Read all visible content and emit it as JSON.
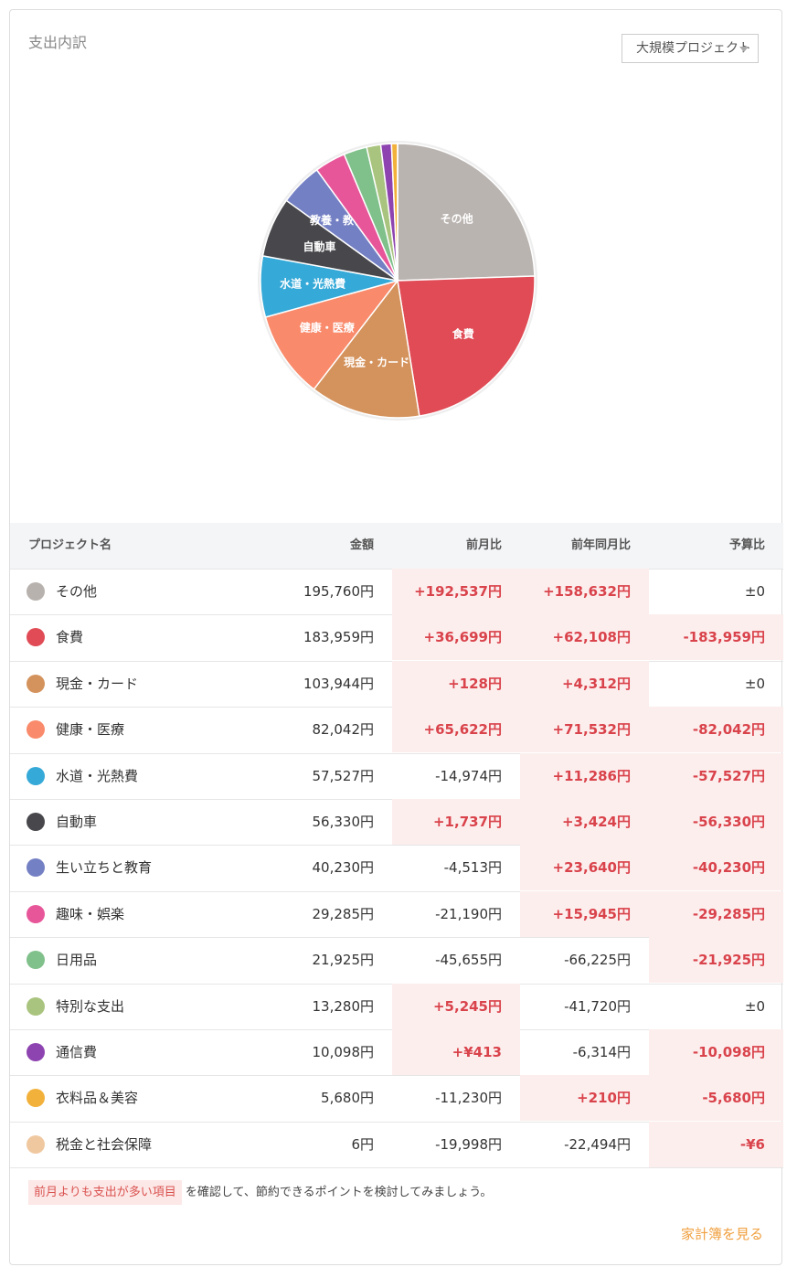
{
  "header": {
    "title": "支出内訳",
    "dropdown": "大規模プロジェクト"
  },
  "chart_data": {
    "type": "pie",
    "labels": [
      "その他",
      "食費",
      "現金・カード",
      "健康・医療",
      "水道・光熱費",
      "自動車",
      "教養・教育",
      null,
      null,
      null,
      null,
      null,
      null
    ],
    "values": [
      195760,
      183959,
      103944,
      82042,
      57527,
      56330,
      40230,
      29285,
      21925,
      13280,
      10098,
      5680,
      6
    ],
    "colors": [
      "#bab4b0",
      "#e04b55",
      "#d4925c",
      "#f98a6b",
      "#35a9d8",
      "#48484c",
      "#7480c4",
      "#e8569a",
      "#80c08b",
      "#a9c47e",
      "#8e44b0",
      "#f2b13a",
      "#f0c8a0"
    ]
  },
  "table": {
    "columns": [
      "プロジェクト名",
      "金額",
      "前月比",
      "前年同月比",
      "予算比"
    ],
    "rows": [
      [
        "その他",
        "195,760円",
        "+192,537円",
        "+158,632円",
        "±0"
      ],
      [
        "食費",
        "183,959円",
        "+36,699円",
        "+62,108円",
        "-183,959円"
      ],
      [
        "現金・カード",
        "103,944円",
        "+128円",
        "+4,312円",
        "±0"
      ],
      [
        "健康・医療",
        "82,042円",
        "+65,622円",
        "+71,532円",
        "-82,042円"
      ],
      [
        "水道・光熱費",
        "57,527円",
        "-14,974円",
        "+11,286円",
        "-57,527円"
      ],
      [
        "自動車",
        "56,330円",
        "+1,737円",
        "+3,424円",
        "-56,330円"
      ],
      [
        "生い立ちと教育",
        "40,230円",
        "-4,513円",
        "+23,640円",
        "-40,230円"
      ],
      [
        "趣味・娯楽",
        "29,285円",
        "-21,190円",
        "+15,945円",
        "-29,285円"
      ],
      [
        "日用品",
        "21,925円",
        "-45,655円",
        "-66,225円",
        "-21,925円"
      ],
      [
        "特別な支出",
        "13,280円",
        "+5,245円",
        "-41,720円",
        "±0"
      ],
      [
        "通信費",
        "10,098円",
        "+¥413",
        "-6,314円",
        "-10,098円"
      ],
      [
        "衣料品＆美容",
        "5,680円",
        "-11,230円",
        "+210円",
        "-5,680円"
      ],
      [
        "税金と社会保障",
        "6円",
        "-19,998円",
        "-22,494円",
        "-¥6"
      ]
    ],
    "icon_colors": [
      "#b8b2ae",
      "#e04b55",
      "#d4925c",
      "#f98a6b",
      "#35a9d8",
      "#48484c",
      "#7480c4",
      "#e8569a",
      "#80c08b",
      "#a9c47e",
      "#8e44b0",
      "#f2b13a",
      "#f0c8a0"
    ]
  },
  "footer": {
    "highlight": "前月よりも支出が多い項目",
    "note": "を確認して、節約できるポイントを検討してみましょう。",
    "link": "家計簿を見る"
  }
}
